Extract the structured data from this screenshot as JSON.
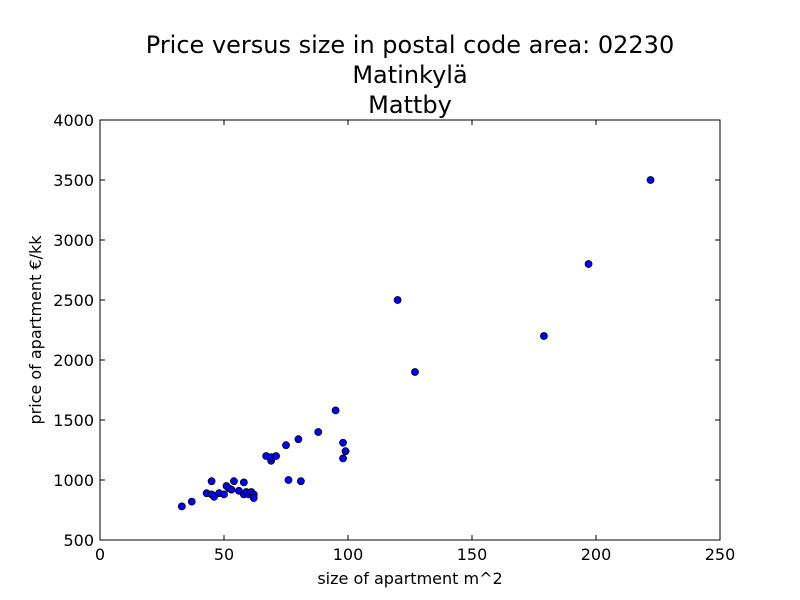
{
  "chart_data": {
    "type": "scatter",
    "title": [
      "Price versus size in postal code area: 02230",
      "Matinkylä",
      "Mattby"
    ],
    "xlabel": "size of apartment m^2",
    "ylabel": "price of apartment €/kk",
    "xlim": [
      0,
      250
    ],
    "ylim": [
      500,
      4000
    ],
    "xticks": [
      0,
      50,
      100,
      150,
      200,
      250
    ],
    "yticks": [
      500,
      1000,
      1500,
      2000,
      2500,
      3000,
      3500,
      4000
    ],
    "grid": false,
    "marker_color": "#0000ff",
    "marker_edge_color": "#000000",
    "points": [
      {
        "x": 33,
        "y": 780
      },
      {
        "x": 37,
        "y": 820
      },
      {
        "x": 43,
        "y": 890
      },
      {
        "x": 45,
        "y": 990
      },
      {
        "x": 45,
        "y": 880
      },
      {
        "x": 46,
        "y": 860
      },
      {
        "x": 48,
        "y": 890
      },
      {
        "x": 50,
        "y": 880
      },
      {
        "x": 51,
        "y": 950
      },
      {
        "x": 52,
        "y": 930
      },
      {
        "x": 53,
        "y": 920
      },
      {
        "x": 54,
        "y": 990
      },
      {
        "x": 56,
        "y": 910
      },
      {
        "x": 58,
        "y": 980
      },
      {
        "x": 58,
        "y": 880
      },
      {
        "x": 59,
        "y": 900
      },
      {
        "x": 60,
        "y": 880
      },
      {
        "x": 61,
        "y": 900
      },
      {
        "x": 62,
        "y": 880
      },
      {
        "x": 62,
        "y": 850
      },
      {
        "x": 67,
        "y": 1200
      },
      {
        "x": 69,
        "y": 1160
      },
      {
        "x": 69,
        "y": 1190
      },
      {
        "x": 71,
        "y": 1200
      },
      {
        "x": 75,
        "y": 1290
      },
      {
        "x": 76,
        "y": 1000
      },
      {
        "x": 80,
        "y": 1340
      },
      {
        "x": 81,
        "y": 990
      },
      {
        "x": 88,
        "y": 1400
      },
      {
        "x": 95,
        "y": 1580
      },
      {
        "x": 98,
        "y": 1310
      },
      {
        "x": 98,
        "y": 1180
      },
      {
        "x": 99,
        "y": 1240
      },
      {
        "x": 120,
        "y": 2500
      },
      {
        "x": 127,
        "y": 1900
      },
      {
        "x": 179,
        "y": 2200
      },
      {
        "x": 197,
        "y": 2800
      },
      {
        "x": 222,
        "y": 3500
      }
    ]
  }
}
